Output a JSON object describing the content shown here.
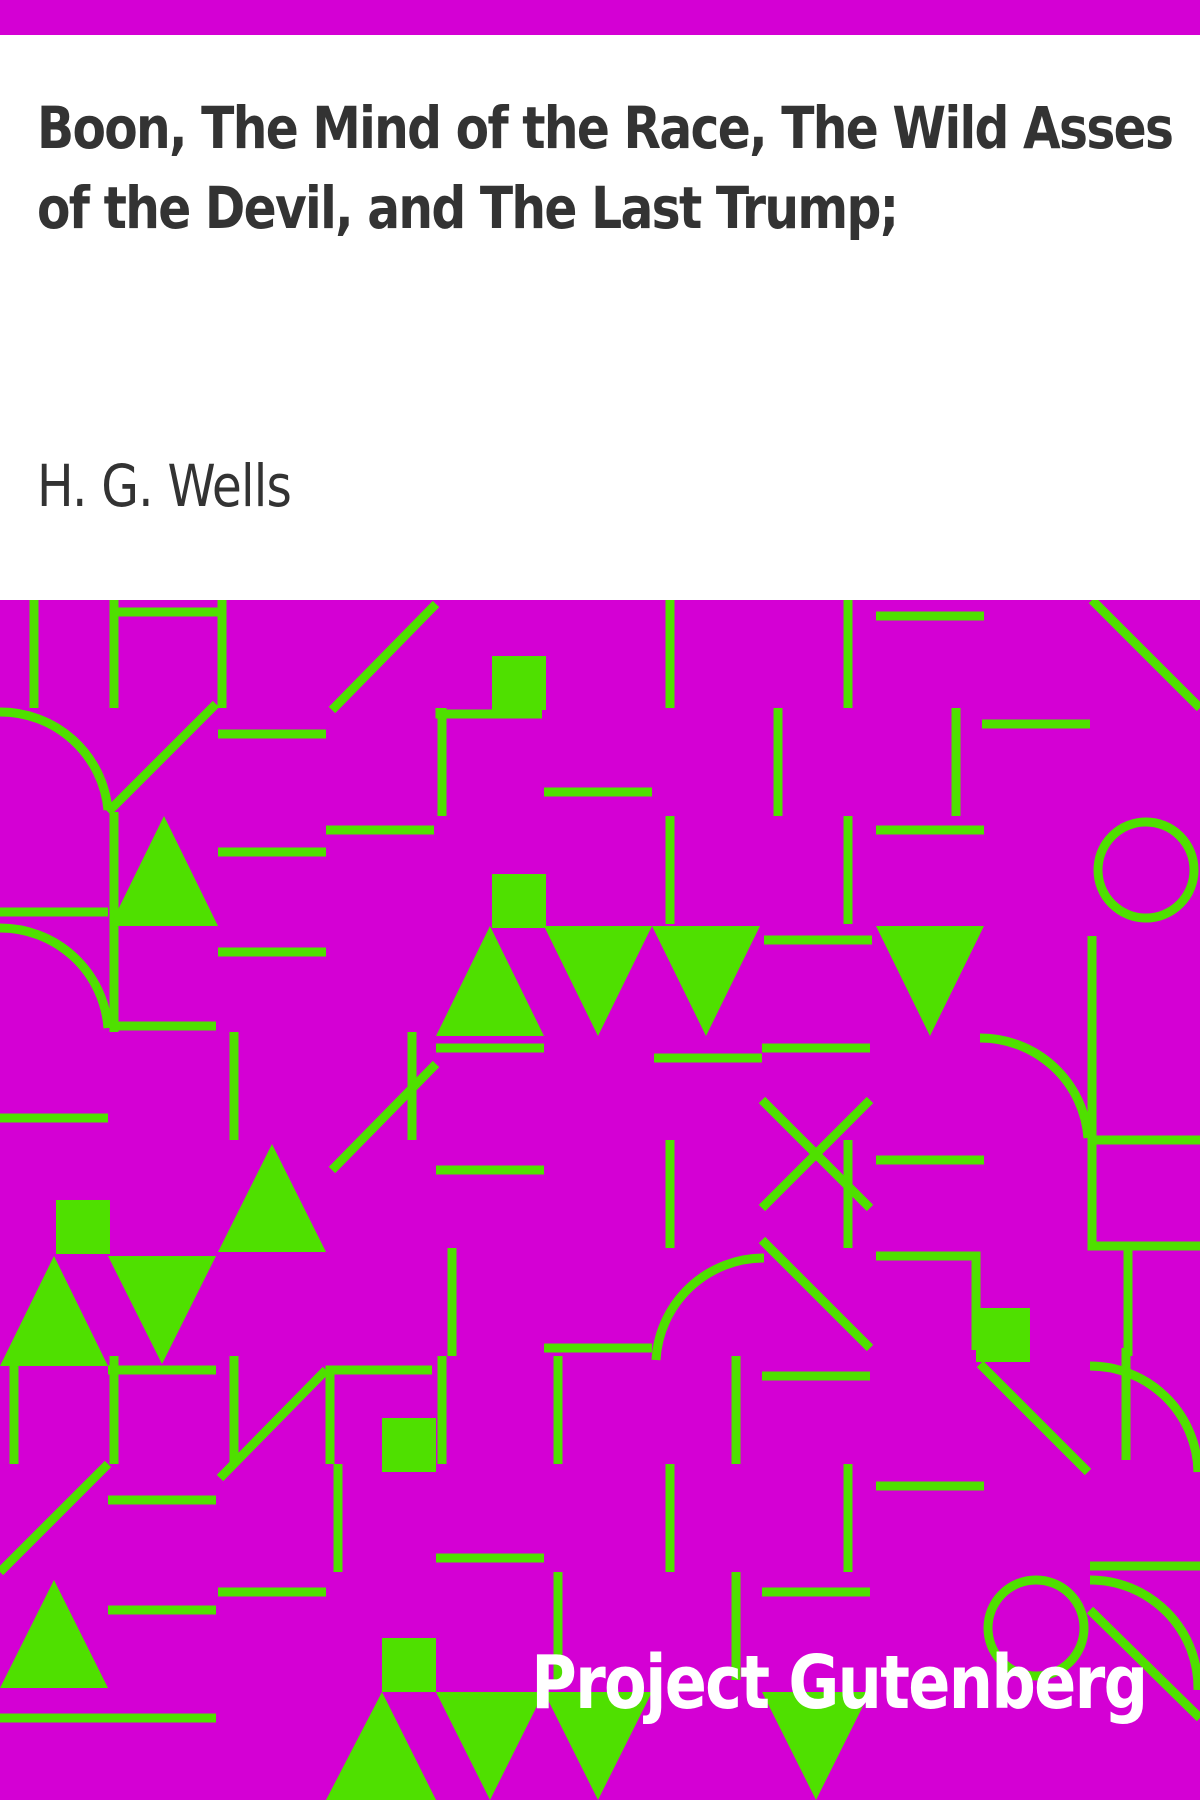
{
  "cover": {
    "title": "Boon, The Mind of the Race, The Wild Asses of the Devil, and The Last Trump;",
    "author": "H. G. Wells",
    "publisher": "Project Gutenberg"
  },
  "colors": {
    "background": "#d400d4",
    "pattern": "#4fe000",
    "title_block": "#ffffff",
    "text": "#333333",
    "publisher_text": "#ffffff"
  }
}
